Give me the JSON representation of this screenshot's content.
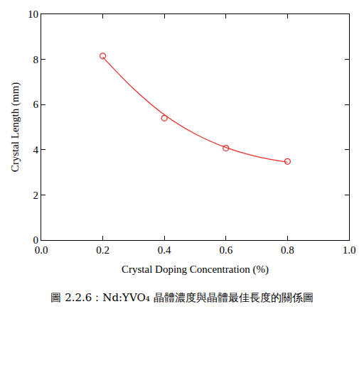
{
  "chart_data": {
    "type": "scatter",
    "x_label": "Crystal Doping Concentration (%)",
    "y_label": "Crystal Length (mm)",
    "caption": "圖 2.2.6：Nd:YVO₄ 晶體濃度與晶體最佳長度的關係圖",
    "xlim": [
      0,
      1
    ],
    "xticks": [
      {
        "value": 0,
        "label": "0.0"
      },
      0.2,
      0.4,
      0.6,
      0.8,
      {
        "value": 1,
        "label": "1.0"
      }
    ],
    "ylim": [
      0,
      10
    ],
    "yticks": [
      0,
      2,
      4,
      6,
      8,
      10
    ],
    "grid": false,
    "series": [
      {
        "type": "scatter",
        "marker": "open circle",
        "color": "#e8302a",
        "x": [
          0.2,
          0.4,
          0.6,
          0.8
        ],
        "values": [
          8.15,
          5.4,
          4.07,
          3.48
        ]
      },
      {
        "type": "line",
        "line_style": "solid",
        "color": "#e8302a",
        "x": [
          0.2,
          0.3,
          0.4,
          0.5,
          0.6,
          0.7,
          0.8
        ],
        "values": [
          8.1,
          6.7,
          5.55,
          4.7,
          4.1,
          3.7,
          3.45
        ]
      }
    ]
  }
}
